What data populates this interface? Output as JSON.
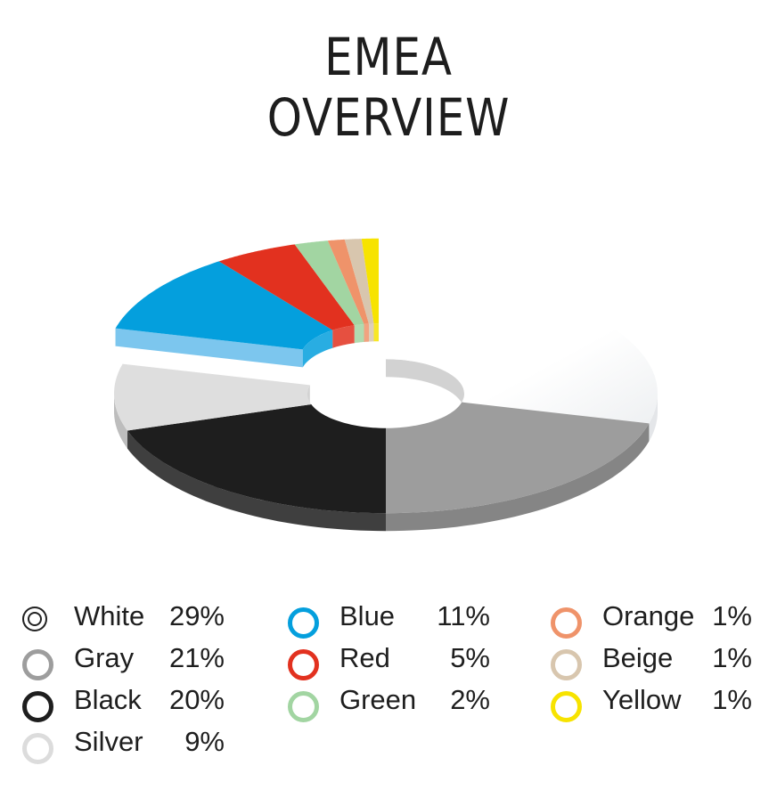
{
  "title_lines": [
    "EMEA",
    "OVERVIEW"
  ],
  "chart_data": {
    "type": "pie",
    "title": "EMEA OVERVIEW",
    "categories": [
      "White",
      "Gray",
      "Black",
      "Silver",
      "Blue",
      "Red",
      "Green",
      "Orange",
      "Beige",
      "Yellow"
    ],
    "values": [
      29,
      21,
      20,
      9,
      11,
      5,
      2,
      1,
      1,
      1
    ],
    "value_labels": [
      "29%",
      "21%",
      "20%",
      "9%",
      "11%",
      "5%",
      "2%",
      "1%",
      "1%",
      "1%"
    ],
    "colors": [
      "#ffffff",
      "#9d9d9d",
      "#1e1e1e",
      "#dedede",
      "#049fdd",
      "#e2311f",
      "#a2d5a2",
      "#ef936a",
      "#d8c6ae",
      "#f7e300"
    ],
    "exploded": [
      "Blue",
      "Red",
      "Green",
      "Orange",
      "Beige",
      "Yellow"
    ],
    "style": "3d-donut",
    "legend_position": "bottom"
  }
}
